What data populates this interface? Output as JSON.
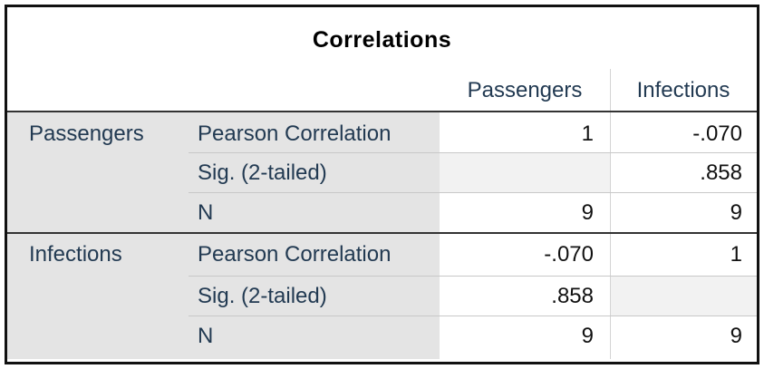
{
  "table": {
    "title": "Correlations",
    "columns": [
      "Passengers",
      "Infections"
    ],
    "groups": [
      {
        "name": "Passengers",
        "rows": [
          {
            "stat": "Pearson Correlation",
            "values": [
              "1",
              "-.070"
            ]
          },
          {
            "stat": "Sig. (2-tailed)",
            "values": [
              "",
              ".858"
            ]
          },
          {
            "stat": "N",
            "values": [
              "9",
              "9"
            ]
          }
        ]
      },
      {
        "name": "Infections",
        "rows": [
          {
            "stat": "Pearson Correlation",
            "values": [
              "-.070",
              "1"
            ]
          },
          {
            "stat": "Sig. (2-tailed)",
            "values": [
              ".858",
              ""
            ]
          },
          {
            "stat": "N",
            "values": [
              "9",
              "9"
            ]
          }
        ]
      }
    ]
  }
}
